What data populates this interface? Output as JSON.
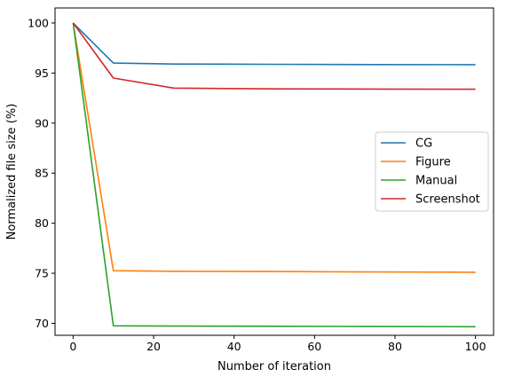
{
  "chart_data": {
    "type": "line",
    "title": "",
    "xlabel": "Number of iteration",
    "ylabel": "Normalized file size (%)",
    "xlim": [
      -4.5,
      104.5
    ],
    "ylim": [
      68.8,
      101.5
    ],
    "xticks": [
      0,
      20,
      40,
      60,
      80,
      100
    ],
    "yticks": [
      70,
      75,
      80,
      85,
      90,
      95,
      100
    ],
    "grid": false,
    "legend_position": "center-right",
    "series": [
      {
        "name": "CG",
        "color": "#1f77b4",
        "points": [
          [
            0,
            100
          ],
          [
            10,
            96.0
          ],
          [
            25,
            95.9
          ],
          [
            50,
            95.87
          ],
          [
            75,
            95.85
          ],
          [
            100,
            95.84
          ]
        ]
      },
      {
        "name": "Figure",
        "color": "#ff7f0e",
        "points": [
          [
            0,
            100
          ],
          [
            10,
            75.25
          ],
          [
            25,
            75.2
          ],
          [
            50,
            75.17
          ],
          [
            75,
            75.13
          ],
          [
            100,
            75.1
          ]
        ]
      },
      {
        "name": "Manual",
        "color": "#2ca02c",
        "points": [
          [
            0,
            100
          ],
          [
            10,
            69.75
          ],
          [
            25,
            69.72
          ],
          [
            50,
            69.7
          ],
          [
            75,
            69.68
          ],
          [
            100,
            69.66
          ]
        ]
      },
      {
        "name": "Screenshot",
        "color": "#d62728",
        "points": [
          [
            0,
            100
          ],
          [
            10,
            94.5
          ],
          [
            25,
            93.5
          ],
          [
            50,
            93.42
          ],
          [
            75,
            93.4
          ],
          [
            100,
            93.38
          ]
        ]
      }
    ]
  }
}
